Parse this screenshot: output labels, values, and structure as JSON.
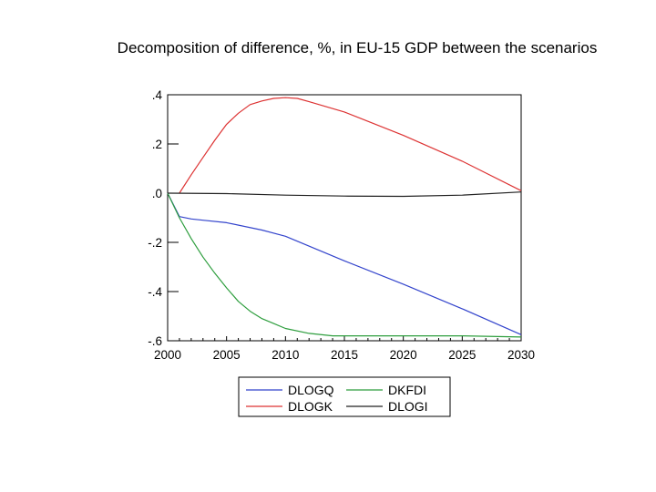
{
  "chart_data": {
    "type": "line",
    "title": "Decomposition of difference, %, in EU-15 GDP between the scenarios",
    "xlim": [
      2000,
      2030
    ],
    "ylim": [
      -0.6,
      0.4
    ],
    "x_ticks": [
      2000,
      2005,
      2010,
      2015,
      2020,
      2025,
      2030
    ],
    "x_tick_labels": [
      "2000",
      "2005",
      "2010",
      "2015",
      "2020",
      "2025",
      "2030"
    ],
    "y_ticks": [
      0.4,
      0.2,
      0.0,
      -0.2,
      -0.4,
      -0.6
    ],
    "y_tick_labels": [
      ".4",
      ".2",
      ".0",
      "-.2",
      "-.4",
      "-.6"
    ],
    "grid": false,
    "legend_position": "bottom",
    "series": [
      {
        "name": "DLOGQ",
        "color": "#3344cc",
        "x": [
          2000,
          2001,
          2002,
          2003,
          2005,
          2008,
          2010,
          2015,
          2020,
          2025,
          2030
        ],
        "y": [
          0.0,
          -0.095,
          -0.105,
          -0.11,
          -0.12,
          -0.15,
          -0.175,
          -0.275,
          -0.37,
          -0.47,
          -0.575
        ]
      },
      {
        "name": "DKFDI",
        "color": "#2e9e3e",
        "x": [
          2000,
          2001,
          2002,
          2003,
          2004,
          2005,
          2006,
          2007,
          2008,
          2009,
          2010,
          2012,
          2014,
          2015,
          2020,
          2025,
          2030
        ],
        "y": [
          0.0,
          -0.1,
          -0.185,
          -0.26,
          -0.325,
          -0.385,
          -0.44,
          -0.48,
          -0.51,
          -0.53,
          -0.55,
          -0.57,
          -0.58,
          -0.58,
          -0.58,
          -0.58,
          -0.585
        ]
      },
      {
        "name": "DLOGK",
        "color": "#dd3333",
        "x": [
          2001,
          2002,
          2003,
          2004,
          2005,
          2006,
          2007,
          2008,
          2009,
          2010,
          2011,
          2012,
          2015,
          2020,
          2025,
          2030
        ],
        "y": [
          0.0,
          0.075,
          0.145,
          0.215,
          0.28,
          0.325,
          0.36,
          0.375,
          0.385,
          0.388,
          0.385,
          0.372,
          0.33,
          0.235,
          0.13,
          0.01
        ]
      },
      {
        "name": "DLOGI",
        "color": "#222222",
        "x": [
          2000,
          2005,
          2010,
          2015,
          2020,
          2025,
          2030
        ],
        "y": [
          0.0,
          -0.002,
          -0.008,
          -0.012,
          -0.013,
          -0.008,
          0.005
        ]
      }
    ],
    "legend_order": [
      "DLOGQ",
      "DKFDI",
      "DLOGK",
      "DLOGI"
    ]
  }
}
